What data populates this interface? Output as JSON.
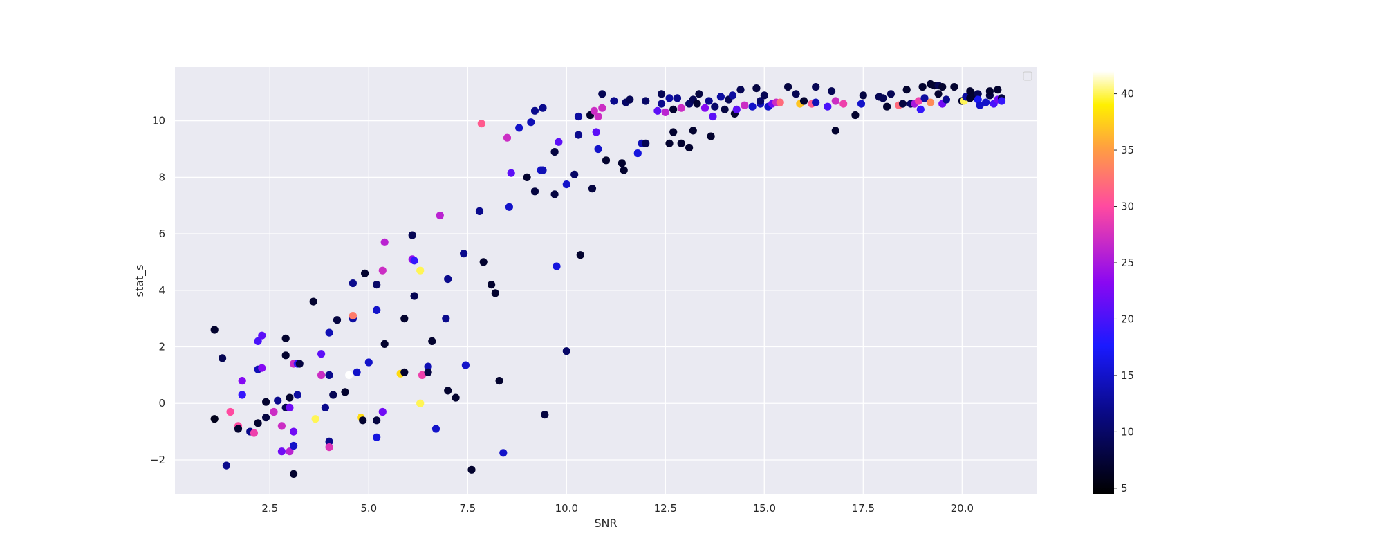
{
  "chart_data": {
    "type": "scatter",
    "title": "",
    "xlabel": "SNR",
    "ylabel": "stat_s",
    "xlim": [
      0.1,
      21.9
    ],
    "ylim": [
      -3.2,
      11.9
    ],
    "xticks": [
      2.5,
      5.0,
      7.5,
      10.0,
      12.5,
      15.0,
      17.5,
      20.0
    ],
    "xtick_labels": [
      "2.5",
      "5.0",
      "7.5",
      "10.0",
      "12.5",
      "15.0",
      "17.5",
      "20.0"
    ],
    "yticks": [
      -2,
      0,
      2,
      4,
      6,
      8,
      10
    ],
    "ytick_labels": [
      "−2",
      "0",
      "2",
      "4",
      "6",
      "8",
      "10"
    ],
    "grid": true,
    "legend": "top-right (empty)",
    "colormap": "gnuplot2",
    "colorbar": {
      "range": [
        4.5,
        42
      ],
      "ticks": [
        5,
        10,
        15,
        20,
        25,
        30,
        35,
        40
      ],
      "tick_labels": [
        "5",
        "10",
        "15",
        "20",
        "25",
        "30",
        "35",
        "40"
      ]
    },
    "points": [
      [
        1.1,
        2.6,
        7
      ],
      [
        1.3,
        1.6,
        9
      ],
      [
        1.1,
        -0.55,
        6
      ],
      [
        1.4,
        -2.2,
        12
      ],
      [
        1.5,
        -0.3,
        30
      ],
      [
        1.7,
        -0.8,
        30
      ],
      [
        1.7,
        -0.9,
        7
      ],
      [
        1.8,
        0.3,
        19
      ],
      [
        1.8,
        0.8,
        23
      ],
      [
        2.0,
        -1.0,
        12
      ],
      [
        2.1,
        -1.05,
        29
      ],
      [
        2.2,
        2.2,
        20
      ],
      [
        2.3,
        2.4,
        21
      ],
      [
        2.2,
        1.2,
        14
      ],
      [
        2.3,
        1.25,
        23
      ],
      [
        2.2,
        -0.7,
        7
      ],
      [
        2.4,
        -0.5,
        8
      ],
      [
        2.4,
        0.05,
        7
      ],
      [
        2.6,
        -0.3,
        27
      ],
      [
        2.7,
        0.1,
        12
      ],
      [
        2.8,
        -0.8,
        27
      ],
      [
        2.8,
        -1.7,
        22
      ],
      [
        2.9,
        2.3,
        7
      ],
      [
        2.9,
        1.7,
        7
      ],
      [
        2.9,
        -0.15,
        9
      ],
      [
        3.0,
        0.2,
        7
      ],
      [
        3.0,
        -0.15,
        22
      ],
      [
        3.0,
        -1.7,
        26
      ],
      [
        3.1,
        -1.0,
        22
      ],
      [
        3.1,
        -2.5,
        7
      ],
      [
        3.1,
        1.4,
        27
      ],
      [
        3.2,
        1.4,
        19
      ],
      [
        3.1,
        -1.5,
        15
      ],
      [
        3.2,
        0.3,
        13
      ],
      [
        3.25,
        1.4,
        8
      ],
      [
        3.6,
        3.6,
        7
      ],
      [
        3.65,
        -0.55,
        40
      ],
      [
        3.8,
        1.0,
        27
      ],
      [
        3.8,
        1.75,
        21
      ],
      [
        3.9,
        -0.15,
        12
      ],
      [
        4.0,
        1.0,
        12
      ],
      [
        4.0,
        2.5,
        14
      ],
      [
        4.0,
        -1.35,
        12
      ],
      [
        4.0,
        -1.55,
        28
      ],
      [
        4.1,
        0.3,
        9
      ],
      [
        4.2,
        2.95,
        8
      ],
      [
        4.4,
        0.4,
        7
      ],
      [
        4.5,
        1.0,
        42
      ],
      [
        4.6,
        4.25,
        12
      ],
      [
        4.6,
        3.0,
        13
      ],
      [
        4.6,
        3.1,
        33
      ],
      [
        4.7,
        1.1,
        15
      ],
      [
        4.8,
        -0.5,
        38
      ],
      [
        4.85,
        -0.6,
        7
      ],
      [
        4.9,
        4.6,
        7
      ],
      [
        5.0,
        1.45,
        15
      ],
      [
        5.2,
        4.2,
        10
      ],
      [
        5.2,
        -0.6,
        8
      ],
      [
        5.2,
        3.3,
        15
      ],
      [
        5.2,
        -1.2,
        16
      ],
      [
        5.35,
        -0.3,
        22
      ],
      [
        5.35,
        4.7,
        27
      ],
      [
        5.4,
        5.7,
        26
      ],
      [
        5.4,
        2.1,
        7
      ],
      [
        5.8,
        1.05,
        38
      ],
      [
        5.9,
        1.1,
        7
      ],
      [
        5.9,
        3.0,
        7
      ],
      [
        6.1,
        5.95,
        9
      ],
      [
        6.1,
        5.1,
        24
      ],
      [
        6.15,
        5.05,
        19
      ],
      [
        6.15,
        3.8,
        9
      ],
      [
        6.3,
        4.7,
        40
      ],
      [
        6.3,
        0.0,
        40
      ],
      [
        6.35,
        1.0,
        29
      ],
      [
        6.5,
        1.3,
        14
      ],
      [
        6.5,
        1.1,
        8
      ],
      [
        6.6,
        2.2,
        7
      ],
      [
        6.7,
        -0.9,
        15
      ],
      [
        6.8,
        6.65,
        26
      ],
      [
        7.0,
        4.4,
        12
      ],
      [
        6.95,
        3.0,
        12
      ],
      [
        7.0,
        0.45,
        7
      ],
      [
        7.2,
        0.2,
        7
      ],
      [
        7.4,
        5.3,
        12
      ],
      [
        7.45,
        1.35,
        15
      ],
      [
        7.6,
        -2.35,
        7
      ],
      [
        7.8,
        6.8,
        12
      ],
      [
        7.9,
        5.0,
        7
      ],
      [
        7.85,
        9.9,
        31
      ],
      [
        8.1,
        4.2,
        7
      ],
      [
        8.2,
        3.9,
        7
      ],
      [
        8.3,
        0.8,
        7
      ],
      [
        8.4,
        -1.75,
        15
      ],
      [
        8.5,
        9.4,
        27
      ],
      [
        8.6,
        8.15,
        21
      ],
      [
        8.55,
        6.95,
        15
      ],
      [
        8.8,
        9.75,
        15
      ],
      [
        9.0,
        8.0,
        7
      ],
      [
        9.1,
        9.95,
        14
      ],
      [
        9.2,
        10.35,
        12
      ],
      [
        9.2,
        7.5,
        8
      ],
      [
        9.35,
        8.25,
        15
      ],
      [
        9.4,
        10.45,
        12
      ],
      [
        9.4,
        8.25,
        14
      ],
      [
        9.45,
        -0.4,
        8
      ],
      [
        9.7,
        7.4,
        8
      ],
      [
        9.7,
        8.9,
        8
      ],
      [
        9.75,
        4.85,
        16
      ],
      [
        9.8,
        9.25,
        21
      ],
      [
        10.0,
        7.75,
        15
      ],
      [
        10.0,
        1.85,
        10
      ],
      [
        10.2,
        8.1,
        10
      ],
      [
        10.3,
        9.5,
        12
      ],
      [
        10.3,
        10.15,
        13
      ],
      [
        10.35,
        5.25,
        7
      ],
      [
        10.6,
        10.2,
        7
      ],
      [
        10.65,
        7.6,
        8
      ],
      [
        10.7,
        10.35,
        27
      ],
      [
        10.75,
        9.6,
        21
      ],
      [
        10.8,
        10.15,
        27
      ],
      [
        10.8,
        9.0,
        15
      ],
      [
        10.9,
        10.45,
        27
      ],
      [
        10.9,
        10.95,
        9
      ],
      [
        11.0,
        8.6,
        7
      ],
      [
        11.2,
        10.7,
        12
      ],
      [
        11.4,
        8.5,
        7
      ],
      [
        11.45,
        8.25,
        7
      ],
      [
        11.5,
        10.65,
        10
      ],
      [
        11.6,
        10.75,
        9
      ],
      [
        11.8,
        8.85,
        16
      ],
      [
        11.9,
        9.2,
        14
      ],
      [
        12.0,
        9.2,
        9
      ],
      [
        12.0,
        10.7,
        10
      ],
      [
        12.3,
        10.35,
        21
      ],
      [
        12.4,
        10.95,
        9
      ],
      [
        12.4,
        10.6,
        12
      ],
      [
        12.5,
        10.3,
        26
      ],
      [
        12.6,
        9.2,
        7
      ],
      [
        12.6,
        10.8,
        13
      ],
      [
        12.7,
        9.6,
        7
      ],
      [
        12.7,
        10.4,
        7
      ],
      [
        12.8,
        10.8,
        12
      ],
      [
        12.9,
        9.2,
        7
      ],
      [
        12.9,
        10.45,
        27
      ],
      [
        13.1,
        9.05,
        7
      ],
      [
        13.1,
        10.6,
        10
      ],
      [
        13.2,
        10.75,
        9
      ],
      [
        13.2,
        9.65,
        7
      ],
      [
        13.3,
        10.6,
        7
      ],
      [
        13.35,
        10.95,
        8
      ],
      [
        13.5,
        10.45,
        23
      ],
      [
        13.6,
        10.7,
        12
      ],
      [
        13.65,
        9.45,
        7
      ],
      [
        13.7,
        10.15,
        21
      ],
      [
        13.75,
        10.5,
        10
      ],
      [
        13.9,
        10.85,
        13
      ],
      [
        14.0,
        10.4,
        8
      ],
      [
        14.1,
        10.75,
        9
      ],
      [
        14.2,
        10.9,
        13
      ],
      [
        14.25,
        10.25,
        7
      ],
      [
        14.3,
        10.4,
        21
      ],
      [
        14.4,
        11.1,
        9
      ],
      [
        14.5,
        10.55,
        27
      ],
      [
        14.7,
        10.5,
        15
      ],
      [
        14.8,
        11.15,
        8
      ],
      [
        14.9,
        10.6,
        14
      ],
      [
        14.9,
        10.7,
        10
      ],
      [
        15.0,
        10.9,
        9
      ],
      [
        15.1,
        10.5,
        15
      ],
      [
        15.2,
        10.6,
        22
      ],
      [
        15.3,
        10.65,
        27
      ],
      [
        15.4,
        10.65,
        32
      ],
      [
        15.6,
        11.2,
        8
      ],
      [
        15.8,
        10.95,
        9
      ],
      [
        15.9,
        10.6,
        37
      ],
      [
        16.0,
        10.7,
        7
      ],
      [
        16.2,
        10.6,
        31
      ],
      [
        16.3,
        10.65,
        14
      ],
      [
        16.3,
        11.2,
        9
      ],
      [
        16.6,
        10.5,
        20
      ],
      [
        16.7,
        11.05,
        9
      ],
      [
        16.8,
        9.65,
        7
      ],
      [
        16.8,
        10.7,
        27
      ],
      [
        17.0,
        10.6,
        29
      ],
      [
        17.3,
        10.2,
        7
      ],
      [
        17.45,
        10.6,
        15
      ],
      [
        17.5,
        10.9,
        8
      ],
      [
        17.9,
        10.85,
        9
      ],
      [
        18.0,
        10.8,
        9
      ],
      [
        18.1,
        10.5,
        7
      ],
      [
        18.2,
        10.95,
        9
      ],
      [
        18.4,
        10.55,
        32
      ],
      [
        18.5,
        10.6,
        8
      ],
      [
        18.6,
        11.1,
        7
      ],
      [
        18.7,
        10.6,
        10
      ],
      [
        18.8,
        10.6,
        25
      ],
      [
        18.9,
        10.7,
        29
      ],
      [
        18.95,
        10.4,
        19
      ],
      [
        19.0,
        11.2,
        7
      ],
      [
        19.05,
        10.8,
        13
      ],
      [
        19.2,
        11.3,
        7
      ],
      [
        19.2,
        10.65,
        34
      ],
      [
        19.3,
        11.25,
        7
      ],
      [
        19.4,
        11.25,
        9
      ],
      [
        19.4,
        10.95,
        7
      ],
      [
        19.5,
        10.6,
        22
      ],
      [
        19.5,
        11.2,
        7
      ],
      [
        19.6,
        10.75,
        12
      ],
      [
        19.8,
        11.2,
        7
      ],
      [
        20.0,
        10.7,
        7
      ],
      [
        20.05,
        10.7,
        40
      ],
      [
        20.1,
        10.85,
        13
      ],
      [
        20.2,
        11.05,
        7
      ],
      [
        20.2,
        10.8,
        7
      ],
      [
        20.3,
        10.9,
        7
      ],
      [
        20.4,
        10.95,
        9
      ],
      [
        20.4,
        10.75,
        17
      ],
      [
        20.45,
        10.55,
        15
      ],
      [
        20.6,
        10.65,
        15
      ],
      [
        20.7,
        10.9,
        8
      ],
      [
        20.7,
        11.05,
        7
      ],
      [
        20.8,
        10.6,
        20
      ],
      [
        20.9,
        11.1,
        7
      ],
      [
        20.9,
        10.75,
        22
      ],
      [
        21.0,
        10.8,
        8
      ],
      [
        21.0,
        10.7,
        19
      ]
    ]
  }
}
